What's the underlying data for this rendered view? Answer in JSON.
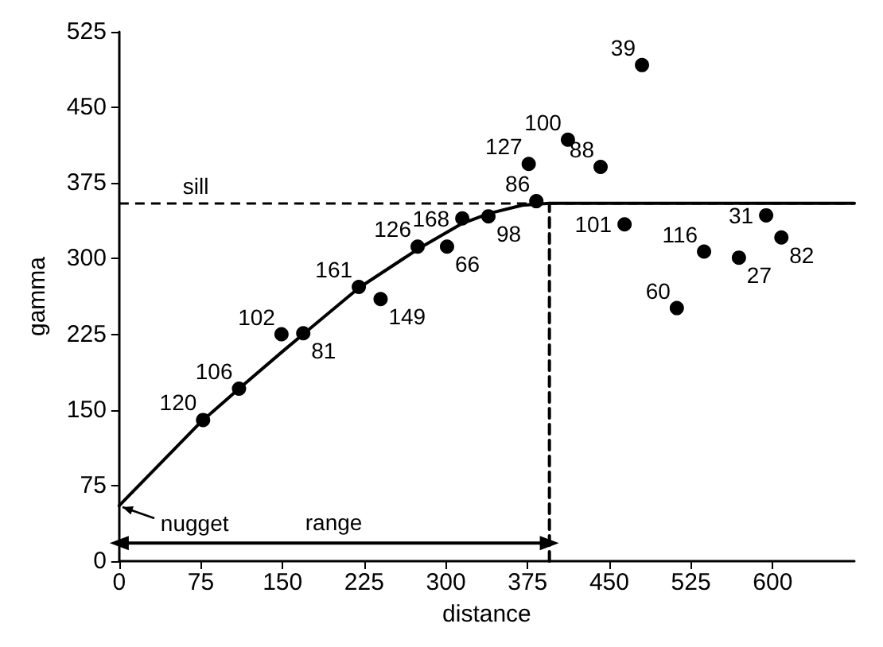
{
  "chart_data": {
    "type": "scatter",
    "xlabel": "distance",
    "ylabel": "gamma",
    "xlim": [
      0,
      675
    ],
    "ylim": [
      0,
      525
    ],
    "xticks": [
      0,
      75,
      150,
      225,
      300,
      375,
      450,
      525,
      600
    ],
    "yticks": [
      0,
      75,
      150,
      225,
      300,
      375,
      450,
      525
    ],
    "grid": false,
    "series": [
      {
        "color": "#000000",
        "marker": "circle",
        "x": [
          77,
          110,
          149,
          169,
          220,
          240,
          274,
          301,
          315,
          339,
          383,
          376,
          412,
          442,
          480,
          464,
          512,
          537,
          569,
          594,
          608
        ],
        "values": [
          140,
          171,
          225,
          226,
          272,
          260,
          312,
          312,
          340,
          342,
          357,
          394,
          418,
          391,
          492,
          334,
          251,
          307,
          301,
          343,
          321
        ]
      },
      {
        "type": "line",
        "color": "#000000",
        "line_style": "solid",
        "marker": "none",
        "x": [
          0,
          75,
          110,
          150,
          170,
          220,
          275,
          315,
          340,
          370,
          395,
          675
        ],
        "values": [
          55,
          138,
          171,
          208,
          226,
          271,
          310,
          335,
          345,
          353,
          355,
          355
        ]
      },
      {
        "type": "line",
        "color": "#000000",
        "line_style": "dashed",
        "marker": "none",
        "x": [
          395,
          395
        ],
        "values": [
          0,
          355
        ]
      },
      {
        "type": "line",
        "color": "#000000",
        "line_style": "solid",
        "marker": "triangle",
        "x": [
          0,
          395
        ],
        "values": [
          18,
          18
        ]
      }
    ],
    "ref_lines": [
      {
        "axis": "y",
        "value": 355,
        "label": "sill",
        "line_style": "dashed",
        "color": "#000000"
      }
    ],
    "annotations": [
      {
        "text": "nugget",
        "x": 0,
        "y": 55
      },
      {
        "text": "range",
        "x": 197,
        "y": 18
      },
      {
        "text": "120",
        "x": 77,
        "y": 140
      },
      {
        "text": "106",
        "x": 110,
        "y": 171
      },
      {
        "text": "102",
        "x": 149,
        "y": 225
      },
      {
        "text": "81",
        "x": 169,
        "y": 226
      },
      {
        "text": "161",
        "x": 220,
        "y": 272
      },
      {
        "text": "149",
        "x": 240,
        "y": 260
      },
      {
        "text": "126",
        "x": 274,
        "y": 312
      },
      {
        "text": "66",
        "x": 301,
        "y": 312
      },
      {
        "text": "168",
        "x": 315,
        "y": 340
      },
      {
        "text": "98",
        "x": 339,
        "y": 342
      },
      {
        "text": "86",
        "x": 383,
        "y": 357
      },
      {
        "text": "127",
        "x": 376,
        "y": 394
      },
      {
        "text": "100",
        "x": 412,
        "y": 418
      },
      {
        "text": "88",
        "x": 442,
        "y": 391
      },
      {
        "text": "39",
        "x": 480,
        "y": 492
      },
      {
        "text": "101",
        "x": 464,
        "y": 334
      },
      {
        "text": "60",
        "x": 512,
        "y": 251
      },
      {
        "text": "116",
        "x": 537,
        "y": 307
      },
      {
        "text": "27",
        "x": 569,
        "y": 301
      },
      {
        "text": "31",
        "x": 594,
        "y": 343
      },
      {
        "text": "82",
        "x": 608,
        "y": 321
      }
    ]
  }
}
